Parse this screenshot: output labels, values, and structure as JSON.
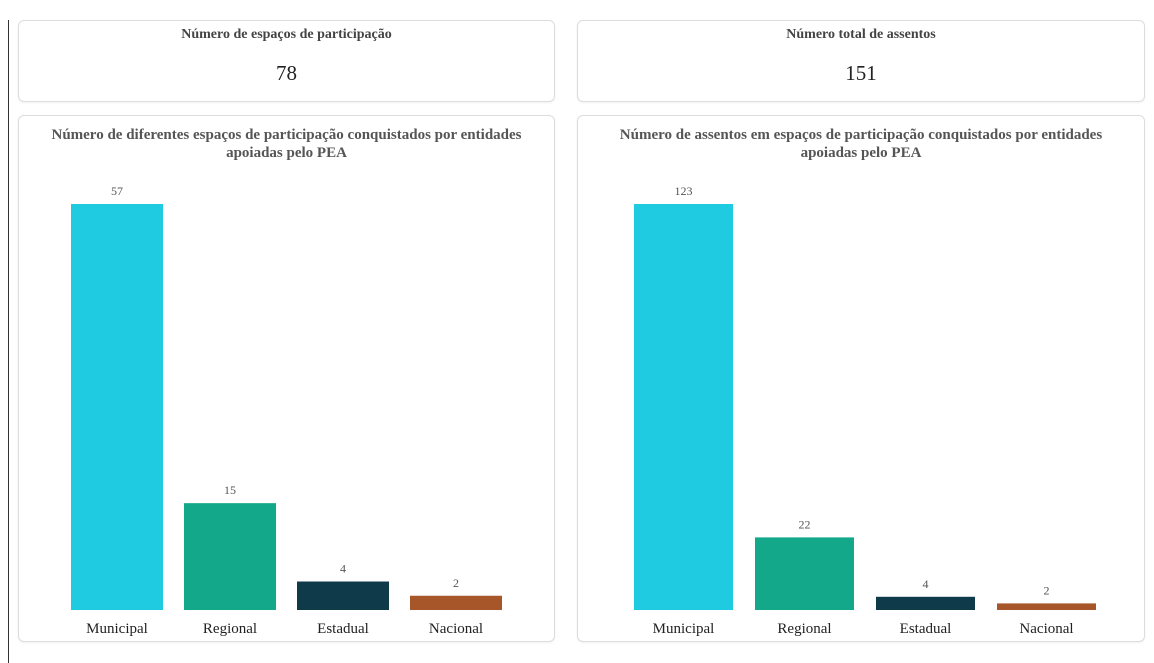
{
  "cards": [
    {
      "title": "Número de espaços de participação",
      "value": 78
    },
    {
      "title": "Número total de assentos",
      "value": 151
    }
  ],
  "chart_data": [
    {
      "type": "bar",
      "title": "Número de diferentes espaços de participação conquistados por entidades apoiadas pelo PEA",
      "categories": [
        "Municipal",
        "Regional",
        "Estadual",
        "Nacional"
      ],
      "values": [
        57,
        15,
        4,
        2
      ],
      "colors": [
        "#1ecbe1",
        "#13a88a",
        "#0f3a4a",
        "#a65628"
      ]
    },
    {
      "type": "bar",
      "title": "Número de assentos em espaços de participação conquistados por entidades apoiadas pelo PEA",
      "categories": [
        "Municipal",
        "Regional",
        "Estadual",
        "Nacional"
      ],
      "values": [
        123,
        22,
        4,
        2
      ],
      "colors": [
        "#1ecbe1",
        "#13a88a",
        "#0f3a4a",
        "#a65628"
      ]
    }
  ]
}
